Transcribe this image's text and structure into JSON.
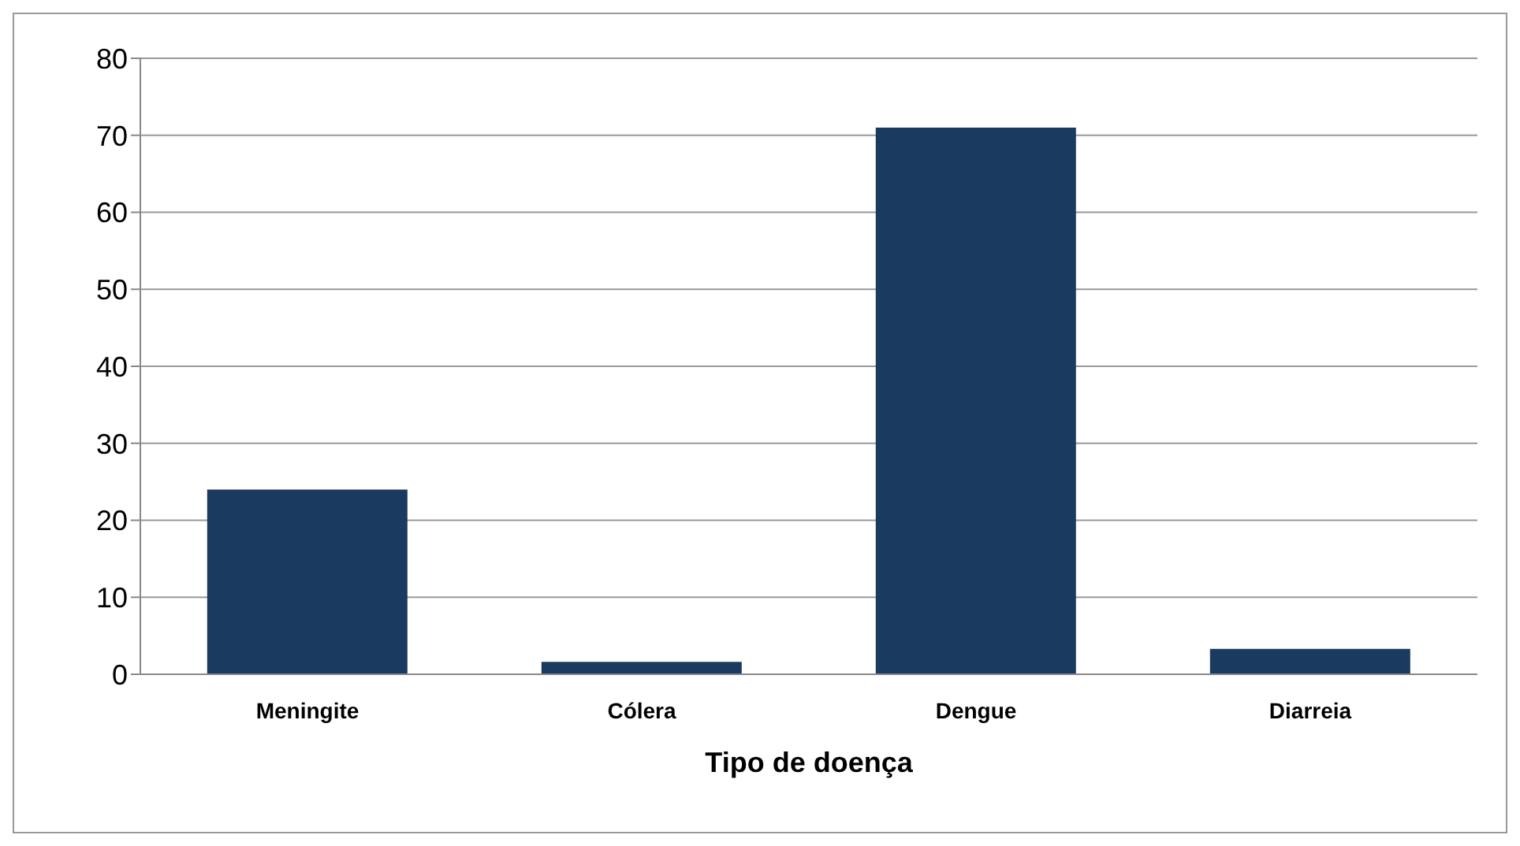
{
  "chart_data": {
    "type": "bar",
    "xlabel": "Tipo de doença",
    "categories": [
      "Meningite",
      "Cólera",
      "Dengue",
      "Diarreia"
    ],
    "values": [
      24,
      1.6,
      71,
      3.3
    ],
    "color": "#1b3a5f",
    "ylim": [
      0,
      80
    ],
    "yticks": [
      0,
      10,
      20,
      30,
      40,
      50,
      60,
      70,
      80
    ],
    "grid": "y"
  }
}
